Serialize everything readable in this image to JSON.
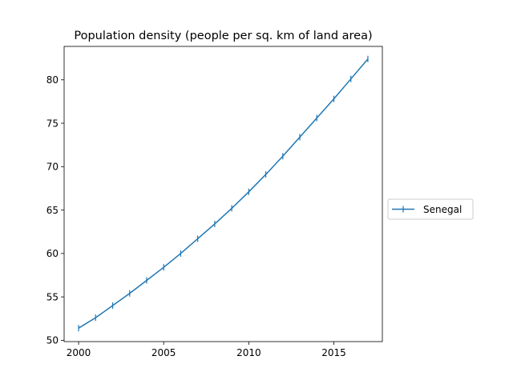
{
  "chart_data": {
    "type": "line",
    "title": "Population density (people per sq. km of land area)",
    "xlabel": "",
    "ylabel": "",
    "xlim": [
      1999.15,
      2017.85
    ],
    "ylim": [
      49.85,
      83.85
    ],
    "xticks": [
      2000,
      2005,
      2010,
      2015
    ],
    "yticks": [
      50,
      55,
      60,
      65,
      70,
      75,
      80
    ],
    "grid": false,
    "legend_position": "right",
    "series": [
      {
        "name": "Senegal",
        "color": "#1f77b4",
        "marker": "vertical-line",
        "x": [
          2000,
          2001,
          2002,
          2003,
          2004,
          2005,
          2006,
          2007,
          2008,
          2009,
          2010,
          2011,
          2012,
          2013,
          2014,
          2015,
          2016,
          2017
        ],
        "y": [
          51.4,
          52.6,
          54.0,
          55.4,
          56.9,
          58.4,
          60.0,
          61.7,
          63.4,
          65.2,
          67.1,
          69.1,
          71.2,
          73.4,
          75.6,
          77.8,
          80.1,
          82.4
        ]
      }
    ]
  }
}
